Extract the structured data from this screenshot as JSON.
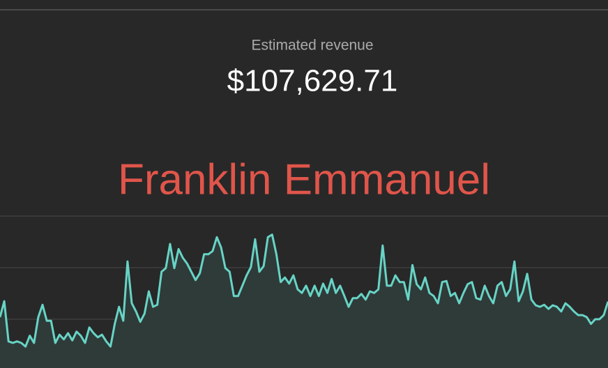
{
  "header": {
    "label": "Estimated revenue",
    "amount": "$107,629.71"
  },
  "overlay": {
    "name": "Franklin Emmanuel"
  },
  "chart_data": {
    "type": "area",
    "color": "#67d4c6",
    "fill": "#2f3b39",
    "ylim": [
      0,
      3
    ],
    "yticks": [
      1,
      2,
      3
    ],
    "grid": true,
    "values": [
      1.04,
      1.35,
      0.57,
      0.54,
      0.57,
      0.54,
      0.47,
      0.68,
      0.54,
      1.04,
      1.28,
      0.97,
      0.97,
      0.54,
      0.7,
      0.61,
      0.73,
      0.59,
      0.76,
      0.68,
      0.54,
      0.84,
      0.73,
      0.65,
      0.7,
      0.57,
      0.47,
      0.91,
      1.24,
      0.97,
      2.12,
      1.31,
      1.15,
      0.95,
      1.11,
      1.54,
      1.24,
      1.28,
      1.92,
      1.99,
      2.46,
      1.99,
      2.36,
      2.19,
      2.08,
      1.92,
      1.76,
      1.89,
      2.26,
      2.26,
      2.32,
      2.59,
      2.39,
      1.99,
      1.92,
      1.45,
      1.45,
      1.65,
      1.85,
      2.01,
      2.55,
      1.92,
      2.03,
      2.59,
      2.64,
      2.26,
      1.72,
      1.81,
      1.69,
      1.85,
      1.58,
      1.51,
      1.65,
      1.45,
      1.65,
      1.45,
      1.69,
      1.51,
      1.78,
      1.51,
      1.65,
      1.45,
      1.24,
      1.41,
      1.41,
      1.49,
      1.38,
      1.54,
      1.51,
      1.58,
      2.43,
      1.65,
      1.65,
      1.85,
      1.72,
      1.72,
      1.38,
      2.05,
      1.68,
      1.58,
      1.81,
      1.51,
      1.45,
      1.31,
      1.72,
      1.74,
      1.45,
      1.51,
      1.31,
      1.51,
      1.68,
      1.72,
      1.41,
      1.38,
      1.65,
      1.45,
      1.31,
      1.65,
      1.72,
      1.45,
      1.58,
      2.12,
      1.35,
      1.54,
      1.88,
      1.38,
      1.27,
      1.24,
      1.28,
      1.2,
      1.27,
      1.24,
      1.15,
      1.31,
      1.24,
      1.15,
      1.08,
      1.08,
      1.04,
      0.91,
      1.0,
      1.0,
      1.08,
      1.34
    ]
  }
}
